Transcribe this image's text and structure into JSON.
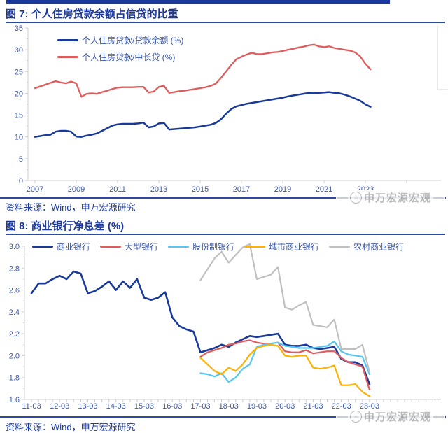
{
  "colors": {
    "navy": "#1A38A0",
    "rule": "#2C4AA0",
    "tickblue": "#3A57A8",
    "axis": "#CFCFCF",
    "wm": "#B5B5B5"
  },
  "figure7": {
    "title": "图 7: 个人住房贷款余额占信贷的比重",
    "source": "资料来源：Wind，申万宏源研究",
    "watermark": "申万宏源宏观",
    "watermark_dash": "—"
  },
  "figure8": {
    "title": "图 8: 商业银行净息差 (%)",
    "source": "资料来源：Wind，申万宏源研究",
    "watermark": "申万宏源宏观",
    "watermark_dash": "—"
  },
  "chart_data": [
    {
      "type": "line",
      "title": "个人住房贷款余额占信贷的比重",
      "xlabel": "",
      "ylabel": "",
      "grid": false,
      "legend_position": "top-left-inside",
      "ylim": [
        0,
        35
      ],
      "x_start": 2007.0,
      "x_step": 0.25,
      "yticks": [
        {
          "label": "0",
          "v": 0
        },
        {
          "label": "5",
          "v": 5
        },
        {
          "label": "10",
          "v": 10
        },
        {
          "label": "15",
          "v": 15
        },
        {
          "label": "20",
          "v": 20
        },
        {
          "label": "25",
          "v": 25
        },
        {
          "label": "30",
          "v": 30
        },
        {
          "label": "35",
          "v": 35
        }
      ],
      "xticks": [
        {
          "label": "2007",
          "i": 0
        },
        {
          "label": "2009",
          "i": 8
        },
        {
          "label": "2011",
          "i": 16
        },
        {
          "label": "2013",
          "i": 24
        },
        {
          "label": "2015",
          "i": 32
        },
        {
          "label": "2017",
          "i": 40
        },
        {
          "label": "2019",
          "i": 48
        },
        {
          "label": "2021",
          "i": 56
        },
        {
          "label": "2023",
          "i": 64
        }
      ],
      "series": [
        {
          "name": "个人住房贷款/贷款余额 (%)",
          "color": "#1A3A99",
          "start_index": 0,
          "values": [
            10.0,
            10.2,
            10.4,
            10.5,
            11.2,
            11.4,
            11.4,
            11.2,
            10.1,
            10.0,
            10.3,
            10.5,
            10.8,
            11.4,
            12.0,
            12.6,
            12.9,
            13.0,
            13.0,
            13.0,
            13.1,
            13.3,
            12.2,
            12.4,
            13.1,
            13.2,
            11.7,
            11.8,
            11.9,
            12.0,
            12.1,
            12.2,
            12.4,
            12.6,
            12.8,
            13.2,
            14.0,
            15.3,
            16.4,
            17.0,
            17.3,
            17.6,
            17.8,
            18.0,
            18.2,
            18.4,
            18.6,
            18.8,
            19.0,
            19.3,
            19.5,
            19.7,
            19.9,
            20.1,
            20.0,
            20.1,
            20.2,
            20.3,
            20.1,
            20.0,
            19.7,
            19.3,
            18.8,
            18.3,
            17.5,
            16.9
          ]
        },
        {
          "name": "个人住房贷款/中长贷 (%)",
          "color": "#E05C5C",
          "start_index": 0,
          "values": [
            21.2,
            21.6,
            22.0,
            22.4,
            22.8,
            22.5,
            22.3,
            22.7,
            22.3,
            19.2,
            19.9,
            20.0,
            19.9,
            20.3,
            20.6,
            21.0,
            21.3,
            21.4,
            21.4,
            21.4,
            21.5,
            21.5,
            20.2,
            20.4,
            21.5,
            21.7,
            20.1,
            20.3,
            20.5,
            20.6,
            20.8,
            21.0,
            21.2,
            21.4,
            21.7,
            22.2,
            23.5,
            25.0,
            26.5,
            27.8,
            28.4,
            28.9,
            29.3,
            29.0,
            29.0,
            29.2,
            29.4,
            29.5,
            29.7,
            30.0,
            30.2,
            30.5,
            30.7,
            31.0,
            31.2,
            30.8,
            30.6,
            30.8,
            30.4,
            30.2,
            30.0,
            29.8,
            29.4,
            28.5,
            26.8,
            25.5
          ]
        }
      ]
    },
    {
      "type": "line",
      "title": "商业银行净息差 (%)",
      "xlabel": "",
      "ylabel": "",
      "grid": false,
      "legend_position": "top-inside",
      "ylim": [
        1.6,
        3.0
      ],
      "x_start_label": "11-03",
      "x_step_quarters": 1,
      "yticks": [
        {
          "label": "1.6",
          "v": 1.6
        },
        {
          "label": "1.8",
          "v": 1.8
        },
        {
          "label": "2.0",
          "v": 2.0
        },
        {
          "label": "2.2",
          "v": 2.2
        },
        {
          "label": "2.4",
          "v": 2.4
        },
        {
          "label": "2.6",
          "v": 2.6
        },
        {
          "label": "2.8",
          "v": 2.8
        },
        {
          "label": "3.0",
          "v": 3.0
        }
      ],
      "xticks": [
        {
          "label": "11-03",
          "i": 0
        },
        {
          "label": "12-03",
          "i": 4
        },
        {
          "label": "13-03",
          "i": 8
        },
        {
          "label": "14-03",
          "i": 12
        },
        {
          "label": "15-03",
          "i": 16
        },
        {
          "label": "16-03",
          "i": 20
        },
        {
          "label": "17-03",
          "i": 24
        },
        {
          "label": "18-03",
          "i": 28
        },
        {
          "label": "19-03",
          "i": 32
        },
        {
          "label": "20-03",
          "i": 36
        },
        {
          "label": "21-03",
          "i": 40
        },
        {
          "label": "22-03",
          "i": 44
        },
        {
          "label": "23-03",
          "i": 48
        }
      ],
      "series": [
        {
          "name": "商业银行",
          "color": "#1A3A99",
          "start_index": 0,
          "values": [
            2.57,
            2.66,
            2.66,
            2.7,
            2.73,
            2.7,
            2.77,
            2.75,
            2.57,
            2.59,
            2.63,
            2.68,
            2.6,
            2.68,
            2.62,
            2.7,
            2.53,
            2.51,
            2.53,
            2.58,
            2.35,
            2.27,
            2.24,
            2.22,
            2.03,
            2.05,
            2.07,
            2.1,
            2.08,
            2.12,
            2.15,
            2.18,
            2.17,
            2.18,
            2.19,
            2.2,
            2.1,
            2.09,
            2.09,
            2.1,
            2.07,
            2.06,
            2.07,
            2.08,
            1.97,
            1.94,
            1.94,
            1.91,
            1.74
          ]
        },
        {
          "name": "大型银行",
          "color": "#E05C5C",
          "start_index": 24,
          "values": [
            1.99,
            2.03,
            2.05,
            2.07,
            2.1,
            2.11,
            2.13,
            2.14,
            2.12,
            2.11,
            2.11,
            2.12,
            2.04,
            2.03,
            2.03,
            2.05,
            2.02,
            2.03,
            2.04,
            2.04,
            1.98,
            1.94,
            1.92,
            1.9,
            1.69
          ]
        },
        {
          "name": "股份制银行",
          "color": "#55C7F2",
          "start_index": 24,
          "values": [
            1.84,
            1.83,
            1.81,
            1.84,
            1.76,
            1.8,
            1.88,
            1.92,
            2.08,
            2.1,
            2.11,
            2.12,
            2.09,
            2.08,
            2.07,
            2.07,
            2.07,
            2.08,
            2.09,
            2.13,
            2.04,
            2.01,
            2.0,
            1.99,
            1.83
          ]
        },
        {
          "name": "城市商业银行",
          "color": "#FFB000",
          "start_index": 24,
          "values": [
            1.98,
            1.92,
            1.86,
            1.83,
            1.89,
            1.86,
            1.92,
            2.01,
            2.07,
            2.09,
            2.1,
            2.09,
            2.0,
            1.99,
            2.0,
            2.0,
            1.89,
            1.88,
            1.89,
            1.91,
            1.73,
            1.73,
            1.74,
            1.67,
            1.63
          ]
        },
        {
          "name": "农村商业银行",
          "color": "#C0C0C0",
          "start_index": 24,
          "values": [
            2.69,
            2.79,
            2.89,
            2.95,
            2.85,
            2.92,
            2.99,
            3.02,
            2.7,
            2.72,
            2.74,
            2.81,
            2.44,
            2.42,
            2.46,
            2.49,
            2.28,
            2.27,
            2.26,
            2.33,
            2.06,
            2.06,
            2.06,
            2.1,
            1.85
          ]
        }
      ]
    }
  ]
}
